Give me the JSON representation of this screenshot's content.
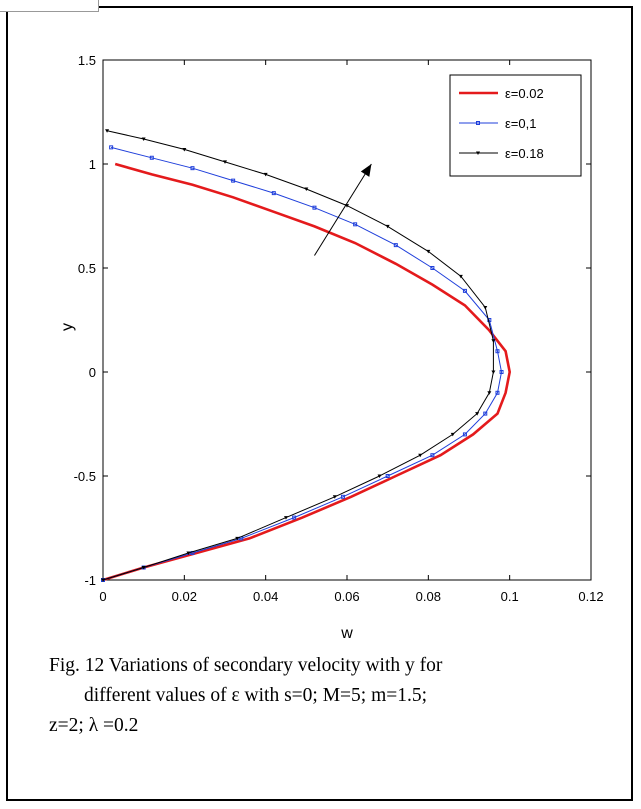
{
  "chart_data": {
    "type": "line",
    "xlabel": "w",
    "ylabel": "y",
    "xlim": [
      0,
      0.12
    ],
    "ylim": [
      -1,
      1.5
    ],
    "xticks": [
      "0",
      "0.02",
      "0.04",
      "0.06",
      "0.08",
      "0.1",
      "0.12"
    ],
    "yticks": [
      "-1",
      "-0.5",
      "0",
      "0.5",
      "1",
      "1.5"
    ],
    "grid": false,
    "legend_position": "top-right",
    "series": [
      {
        "name": "ε=0.02",
        "color": "#e41a1c",
        "marker": "none",
        "points": [
          [
            0.003,
            1.0
          ],
          [
            0.012,
            0.95
          ],
          [
            0.022,
            0.9
          ],
          [
            0.032,
            0.84
          ],
          [
            0.042,
            0.77
          ],
          [
            0.052,
            0.7
          ],
          [
            0.062,
            0.62
          ],
          [
            0.072,
            0.52
          ],
          [
            0.081,
            0.42
          ],
          [
            0.089,
            0.32
          ],
          [
            0.095,
            0.2
          ],
          [
            0.099,
            0.1
          ],
          [
            0.1,
            0.0
          ],
          [
            0.099,
            -0.1
          ],
          [
            0.097,
            -0.2
          ],
          [
            0.091,
            -0.3
          ],
          [
            0.083,
            -0.4
          ],
          [
            0.072,
            -0.5
          ],
          [
            0.061,
            -0.6
          ],
          [
            0.049,
            -0.7
          ],
          [
            0.036,
            -0.8
          ],
          [
            0.023,
            -0.87
          ],
          [
            0.01,
            -0.94
          ],
          [
            0.0,
            -1.0
          ]
        ]
      },
      {
        "name": "ε=0,1",
        "color": "#1f3fdb",
        "marker": "square",
        "points": [
          [
            0.002,
            1.08
          ],
          [
            0.012,
            1.03
          ],
          [
            0.022,
            0.98
          ],
          [
            0.032,
            0.92
          ],
          [
            0.042,
            0.86
          ],
          [
            0.052,
            0.79
          ],
          [
            0.062,
            0.71
          ],
          [
            0.072,
            0.61
          ],
          [
            0.081,
            0.5
          ],
          [
            0.089,
            0.39
          ],
          [
            0.095,
            0.25
          ],
          [
            0.097,
            0.1
          ],
          [
            0.098,
            0.0
          ],
          [
            0.097,
            -0.1
          ],
          [
            0.094,
            -0.2
          ],
          [
            0.089,
            -0.3
          ],
          [
            0.081,
            -0.4
          ],
          [
            0.07,
            -0.5
          ],
          [
            0.059,
            -0.6
          ],
          [
            0.047,
            -0.7
          ],
          [
            0.034,
            -0.8
          ],
          [
            0.022,
            -0.87
          ],
          [
            0.01,
            -0.94
          ],
          [
            0.0,
            -1.0
          ]
        ]
      },
      {
        "name": "ε=0.18",
        "color": "#000000",
        "marker": "triangle",
        "points": [
          [
            0.001,
            1.16
          ],
          [
            0.01,
            1.12
          ],
          [
            0.02,
            1.07
          ],
          [
            0.03,
            1.01
          ],
          [
            0.04,
            0.95
          ],
          [
            0.05,
            0.88
          ],
          [
            0.06,
            0.8
          ],
          [
            0.07,
            0.7
          ],
          [
            0.08,
            0.58
          ],
          [
            0.088,
            0.46
          ],
          [
            0.094,
            0.31
          ],
          [
            0.096,
            0.15
          ],
          [
            0.096,
            0.0
          ],
          [
            0.095,
            -0.1
          ],
          [
            0.092,
            -0.2
          ],
          [
            0.086,
            -0.3
          ],
          [
            0.078,
            -0.4
          ],
          [
            0.068,
            -0.5
          ],
          [
            0.057,
            -0.6
          ],
          [
            0.045,
            -0.7
          ],
          [
            0.033,
            -0.8
          ],
          [
            0.021,
            -0.87
          ],
          [
            0.01,
            -0.94
          ],
          [
            0.0,
            -1.0
          ]
        ]
      }
    ],
    "annotation": {
      "type": "arrow",
      "from": [
        0.052,
        0.56
      ],
      "to": [
        0.066,
        1.0
      ]
    }
  },
  "caption": {
    "line1": "Fig. 12 Variations of  secondary  velocity with y for",
    "line2": "different values of ε  with   s=0; M=5; m=1.5;",
    "line3": "z=2; λ =0.2"
  }
}
